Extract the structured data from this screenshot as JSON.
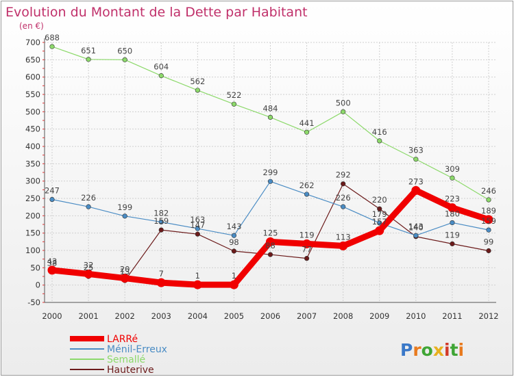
{
  "chart_data": {
    "type": "line",
    "title": "Evolution du Montant de la Dette par Habitant",
    "subtitle": "(en €)",
    "x": [
      "2000",
      "2001",
      "2002",
      "2003",
      "2004",
      "2005",
      "2006",
      "2007",
      "2008",
      "2009",
      "2010",
      "2011",
      "2012"
    ],
    "ylim": [
      -50,
      700
    ],
    "yticks": [
      -50,
      0,
      50,
      100,
      150,
      200,
      250,
      300,
      350,
      400,
      450,
      500,
      550,
      600,
      650,
      700
    ],
    "grid": true,
    "legend_position": "bottom-left",
    "series": [
      {
        "name": "Hauterive",
        "color": "#6b1a1a",
        "values": [
          38,
          25,
          13,
          159,
          147,
          98,
          88,
          77,
          292,
          220,
          140,
          119,
          99
        ]
      },
      {
        "name": "Ménil-Erreux",
        "color": "#4a8cc4",
        "values": [
          247,
          226,
          199,
          182,
          163,
          143,
          299,
          262,
          226,
          179,
          143,
          180,
          159
        ]
      },
      {
        "name": "Semallé",
        "color": "#8cd96a",
        "values": [
          688,
          651,
          650,
          604,
          562,
          522,
          484,
          441,
          500,
          416,
          363,
          309,
          246
        ]
      },
      {
        "name": "LARRé",
        "color": "#f00000",
        "values": [
          43,
          32,
          20,
          7,
          1,
          1,
          125,
          119,
          113,
          157,
          273,
          223,
          189
        ]
      }
    ],
    "legend_order": [
      "LARRé",
      "Ménil-Erreux",
      "Semallé",
      "Hauterive"
    ]
  },
  "logo": {
    "text": "Proxiti"
  }
}
